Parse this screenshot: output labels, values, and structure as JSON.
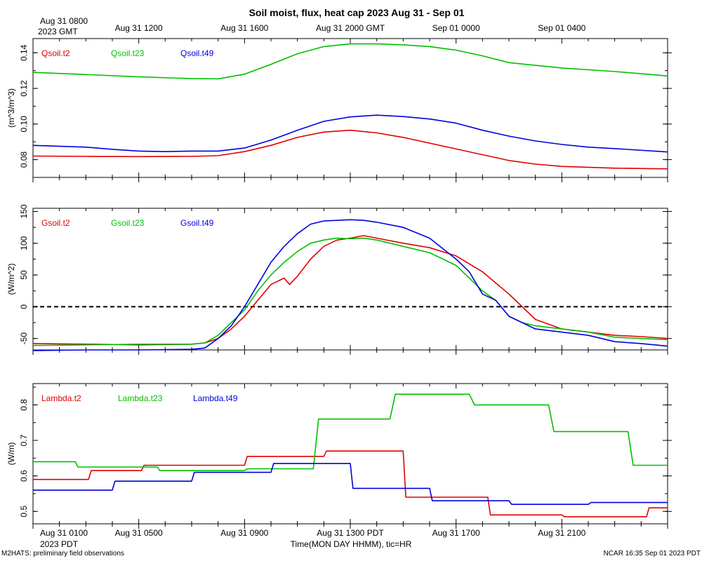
{
  "title": "Soil moist, flux, heat cap 2023 Aug 31 - Sep 01",
  "top_axis": {
    "start_label_line1": "Aug 31 0800",
    "start_label_line2": "2023 GMT",
    "ticks": [
      {
        "hour": 4,
        "label": "Aug 31 1200"
      },
      {
        "hour": 8,
        "label": "Aug 31 1600"
      },
      {
        "hour": 12,
        "label": "Aug 31 2000 GMT"
      },
      {
        "hour": 16,
        "label": "Sep 01 0000"
      },
      {
        "hour": 20,
        "label": "Sep 01 0400"
      }
    ]
  },
  "bottom_axis": {
    "start_label_line1": "Aug 31 0100",
    "start_label_line2": "2023 PDT",
    "ticks": [
      {
        "hour": 4,
        "label": "Aug 31 0500"
      },
      {
        "hour": 8,
        "label": "Aug 31 0900"
      },
      {
        "hour": 12,
        "label": "Aug 31 1300 PDT"
      },
      {
        "hour": 16,
        "label": "Aug 31 1700"
      },
      {
        "hour": 20,
        "label": "Aug 31 2100"
      }
    ],
    "xlabel": "Time(MON DAY HHMM), tic=HR"
  },
  "footer": {
    "left": "M2HATS: preliminary field observations",
    "right": "NCAR 16:35 Sep 01 2023 PDT"
  },
  "colors": {
    "t2": "#e00000",
    "t23": "#00c000",
    "t49": "#0000e0"
  },
  "chart_data": [
    {
      "type": "line",
      "name": "soil-moisture",
      "ylabel": "(m^3/m^3)",
      "ylim": [
        0.07,
        0.148
      ],
      "xlim": [
        0,
        24
      ],
      "yticks": [
        0.08,
        0.1,
        0.12,
        0.14
      ],
      "ytick_labels": [
        "0.08",
        "0.10",
        "0.12",
        "0.14"
      ],
      "zero_line": false,
      "series": [
        {
          "name": "Qsoil.t2",
          "color": "#e00000",
          "x": [
            0,
            2,
            4,
            6,
            7,
            8,
            9,
            10,
            11,
            12,
            13,
            14,
            16,
            18,
            19,
            20,
            22,
            24
          ],
          "y": [
            0.082,
            0.0818,
            0.0817,
            0.0818,
            0.0822,
            0.0845,
            0.088,
            0.0925,
            0.0955,
            0.0965,
            0.095,
            0.0925,
            0.086,
            0.0795,
            0.0775,
            0.0762,
            0.0752,
            0.0748
          ]
        },
        {
          "name": "Qsoil.t23",
          "color": "#00c000",
          "x": [
            0,
            2,
            4,
            6,
            7,
            8,
            9,
            10,
            11,
            12,
            13,
            14,
            15,
            16,
            17,
            18,
            20,
            22,
            24
          ],
          "y": [
            0.129,
            0.1278,
            0.1265,
            0.1255,
            0.1254,
            0.128,
            0.1335,
            0.1395,
            0.1435,
            0.145,
            0.145,
            0.1445,
            0.1435,
            0.1415,
            0.1383,
            0.1345,
            0.1315,
            0.1295,
            0.127
          ]
        },
        {
          "name": "Qsoil.t49",
          "color": "#0000e0",
          "x": [
            0,
            1,
            2,
            3,
            4,
            5,
            6,
            7,
            8,
            9,
            10,
            11,
            12,
            13,
            14,
            15,
            16,
            17,
            18,
            19,
            20,
            21,
            22,
            24
          ],
          "y": [
            0.088,
            0.0875,
            0.087,
            0.0858,
            0.0848,
            0.0845,
            0.0848,
            0.0848,
            0.0865,
            0.091,
            0.0965,
            0.1015,
            0.104,
            0.105,
            0.1042,
            0.1028,
            0.1005,
            0.0965,
            0.0932,
            0.0905,
            0.0885,
            0.087,
            0.0862,
            0.0843
          ]
        }
      ],
      "legend": [
        {
          "label": "Qsoil.t2",
          "color": "#e00000"
        },
        {
          "label": "Qsoil.t23",
          "color": "#00c000"
        },
        {
          "label": "Qsoil.t49",
          "color": "#0000e0"
        }
      ]
    },
    {
      "type": "line",
      "name": "soil-heat-flux",
      "ylabel": "(W/m^2)",
      "ylim": [
        -68,
        155
      ],
      "xlim": [
        0,
        24
      ],
      "yticks": [
        -50,
        0,
        50,
        100,
        150
      ],
      "ytick_labels": [
        "-50",
        "0",
        "50",
        "100",
        "150"
      ],
      "zero_line": true,
      "series": [
        {
          "name": "Gsoil.t2",
          "color": "#e00000",
          "x": [
            0,
            2,
            4,
            6,
            6.5,
            7,
            7.5,
            8,
            8.5,
            9,
            9.5,
            9.7,
            10,
            10.5,
            11,
            11.5,
            12,
            12.5,
            13,
            14,
            15,
            16,
            17,
            18,
            19,
            20,
            21,
            22,
            23,
            24
          ],
          "y": [
            -58,
            -59,
            -60,
            -59,
            -57,
            -50,
            -35,
            -15,
            10,
            35,
            45,
            35,
            48,
            75,
            95,
            105,
            108,
            112,
            108,
            100,
            93,
            80,
            55,
            20,
            -20,
            -35,
            -40,
            -45,
            -47,
            -50
          ]
        },
        {
          "name": "Gsoil.t23",
          "color": "#00c000",
          "x": [
            0,
            2,
            4,
            6,
            6.5,
            7,
            7.5,
            8,
            8.5,
            9,
            9.5,
            10,
            10.5,
            11,
            11.5,
            12,
            12.5,
            13,
            14,
            15,
            16,
            16.5,
            17,
            17.5,
            18,
            18.5,
            19,
            20,
            21,
            22,
            23,
            24
          ],
          "y": [
            -61,
            -60,
            -59,
            -59,
            -57,
            -45,
            -25,
            -5,
            25,
            50,
            70,
            87,
            100,
            105,
            108,
            107,
            108,
            105,
            95,
            85,
            65,
            45,
            25,
            10,
            -15,
            -25,
            -30,
            -35,
            -40,
            -48,
            -50,
            -52
          ]
        },
        {
          "name": "Gsoil.t49",
          "color": "#0000e0",
          "x": [
            0,
            2,
            4,
            6,
            6.5,
            7,
            7.5,
            8,
            8.5,
            9,
            9.5,
            10,
            10.5,
            11,
            11.5,
            12,
            12.5,
            13,
            14,
            15,
            16,
            16.5,
            17,
            17.5,
            18,
            19,
            20,
            21,
            22,
            23,
            24
          ],
          "y": [
            -69,
            -68,
            -68,
            -67,
            -65,
            -50,
            -30,
            0,
            35,
            70,
            95,
            115,
            130,
            135,
            136,
            137,
            136,
            133,
            125,
            108,
            75,
            55,
            20,
            10,
            -15,
            -35,
            -40,
            -45,
            -55,
            -58,
            -62
          ]
        }
      ],
      "legend": [
        {
          "label": "Gsoil.t2",
          "color": "#e00000"
        },
        {
          "label": "Gsoil.t23",
          "color": "#00c000"
        },
        {
          "label": "Gsoil.t49",
          "color": "#0000e0"
        }
      ]
    },
    {
      "type": "line",
      "name": "thermal-conductivity",
      "ylabel": "(W/m)",
      "ylim": [
        0.465,
        0.86
      ],
      "xlim": [
        0,
        24
      ],
      "yticks": [
        0.5,
        0.6,
        0.7,
        0.8
      ],
      "ytick_labels": [
        "0.5",
        "0.6",
        "0.7",
        "0.8"
      ],
      "zero_line": false,
      "series": [
        {
          "name": "Lambda.t2",
          "color": "#e00000",
          "x": [
            0,
            2.1,
            2.2,
            4.1,
            4.2,
            8,
            8.1,
            11,
            11.1,
            14,
            14.1,
            17.2,
            17.3,
            20,
            20.1,
            23.2,
            23.3,
            24
          ],
          "y": [
            0.59,
            0.59,
            0.615,
            0.615,
            0.63,
            0.63,
            0.655,
            0.655,
            0.67,
            0.67,
            0.54,
            0.54,
            0.49,
            0.49,
            0.485,
            0.485,
            0.51,
            0.51
          ]
        },
        {
          "name": "Lambda.t23",
          "color": "#00c000",
          "x": [
            0,
            1.6,
            1.7,
            4.7,
            4.8,
            8,
            8.1,
            10.6,
            10.8,
            13.5,
            13.7,
            16.5,
            16.7,
            19.5,
            19.7,
            22.5,
            22.7,
            24
          ],
          "y": [
            0.64,
            0.64,
            0.625,
            0.625,
            0.615,
            0.615,
            0.62,
            0.62,
            0.76,
            0.76,
            0.83,
            0.83,
            0.8,
            0.8,
            0.725,
            0.725,
            0.63,
            0.63
          ]
        },
        {
          "name": "Lambda.t49",
          "color": "#0000e0",
          "x": [
            0,
            3,
            3.1,
            6,
            6.1,
            9,
            9.1,
            12,
            12.1,
            15,
            15.1,
            18,
            18.1,
            21,
            21.1,
            24
          ],
          "y": [
            0.56,
            0.56,
            0.585,
            0.585,
            0.61,
            0.61,
            0.635,
            0.635,
            0.565,
            0.565,
            0.53,
            0.53,
            0.52,
            0.52,
            0.525,
            0.525
          ]
        }
      ],
      "legend": [
        {
          "label": "Lambda.t2",
          "color": "#e00000"
        },
        {
          "label": "Lambda.t23",
          "color": "#00c000"
        },
        {
          "label": "Lambda.t49",
          "color": "#0000e0"
        }
      ]
    }
  ]
}
